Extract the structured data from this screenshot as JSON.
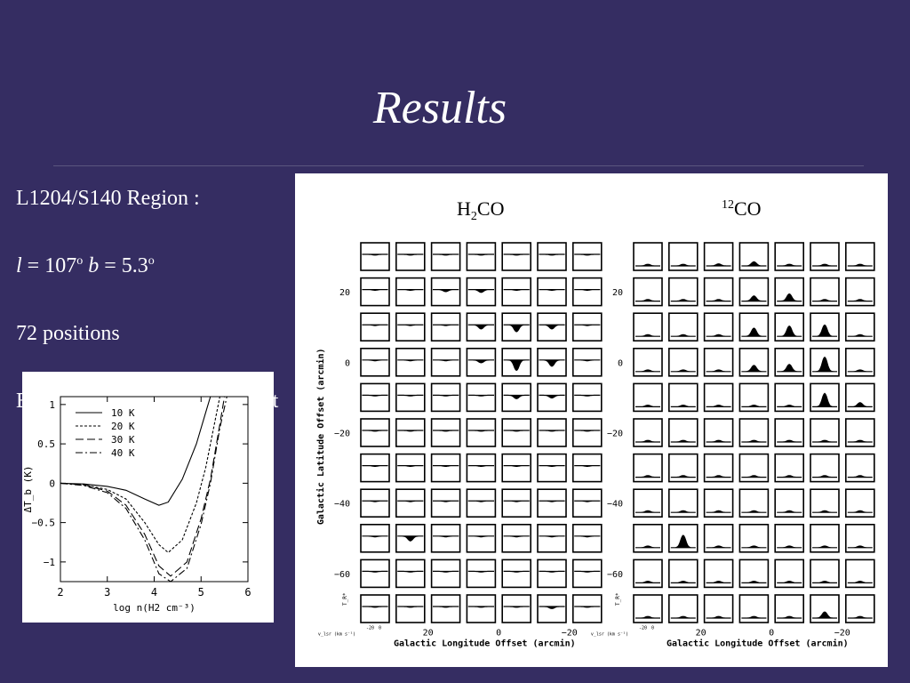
{
  "slide": {
    "title": "Results"
  },
  "bullets": [
    {
      "text": "L1204/S140 Region :"
    },
    {
      "l_label": "l",
      "l_eq": " = 107",
      "l_sup": "o",
      "b_label": "b",
      "b_eq": " = 5.3",
      "b_sup": "o"
    },
    {
      "text": "72 positions"
    },
    {
      "hidden_prefix": "E",
      "hidden_suffix": "et"
    }
  ],
  "grid_figure": {
    "h2co_label": "H2CO",
    "h2co_sub": "2",
    "h2co_prefix": "H",
    "h2co_suffix": "CO",
    "co_sup": "12",
    "co_base": "CO",
    "lat_axis_label": "Galactic Latitude Offset (arcmin)",
    "lon_axis_label": "Galactic Longitude Offset (arcmin)",
    "lat_ticks": [
      "20",
      "0",
      "−20",
      "−40",
      "−60"
    ],
    "lon_ticks": [
      "20",
      "0",
      "−20"
    ],
    "mini_ticks_x": [
      "-20",
      "0"
    ],
    "mini_axis_label": "v_lsr (km s⁻¹)",
    "mini_y_label": "T_R*"
  },
  "chart_data": {
    "type": "line",
    "title": "",
    "xlabel": "log n(H2 cm⁻³)",
    "ylabel": "ΔT_b (K)",
    "xlim": [
      2,
      6
    ],
    "ylim": [
      -1.25,
      1.1
    ],
    "x_ticks": [
      "2",
      "3",
      "4",
      "5",
      "6"
    ],
    "y_ticks": [
      "1",
      "0.5",
      "0",
      "−0.5",
      "−1"
    ],
    "legend_position": "top-right",
    "series": [
      {
        "name": "10 K",
        "style": "solid",
        "x": [
          2.0,
          2.5,
          3.0,
          3.4,
          3.8,
          4.1,
          4.3,
          4.6,
          4.9,
          5.1,
          5.2
        ],
        "y": [
          0.0,
          -0.01,
          -0.04,
          -0.09,
          -0.2,
          -0.28,
          -0.24,
          0.05,
          0.5,
          0.9,
          1.1
        ]
      },
      {
        "name": "20 K",
        "style": "short-dash",
        "x": [
          2.0,
          2.5,
          3.0,
          3.4,
          3.8,
          4.1,
          4.3,
          4.6,
          4.9,
          5.1,
          5.3,
          5.4
        ],
        "y": [
          0.0,
          -0.02,
          -0.08,
          -0.2,
          -0.5,
          -0.78,
          -0.88,
          -0.72,
          -0.25,
          0.2,
          0.8,
          1.1
        ]
      },
      {
        "name": "30 K",
        "style": "long-dash",
        "x": [
          2.0,
          2.5,
          3.0,
          3.4,
          3.8,
          4.1,
          4.35,
          4.7,
          5.0,
          5.2,
          5.4,
          5.5
        ],
        "y": [
          0.0,
          -0.02,
          -0.1,
          -0.28,
          -0.65,
          -1.05,
          -1.18,
          -1.0,
          -0.45,
          0.05,
          0.75,
          1.1
        ]
      },
      {
        "name": "40 K",
        "style": "dash-dot",
        "x": [
          2.0,
          2.5,
          3.0,
          3.4,
          3.8,
          4.1,
          4.35,
          4.7,
          5.0,
          5.2,
          5.4,
          5.55
        ],
        "y": [
          0.0,
          -0.03,
          -0.12,
          -0.32,
          -0.72,
          -1.15,
          -1.25,
          -1.08,
          -0.52,
          0.0,
          0.7,
          1.1
        ]
      }
    ]
  }
}
